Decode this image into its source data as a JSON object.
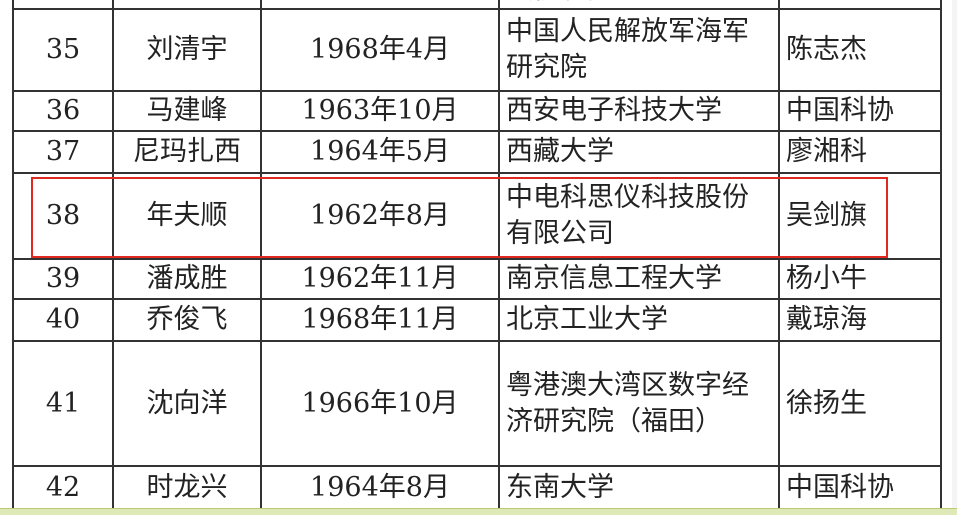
{
  "table": {
    "rows": [
      {
        "no": "",
        "name": "",
        "birth": "",
        "unit": "股份有限公司",
        "recommender": ""
      },
      {
        "no": "35",
        "name": "刘清宇",
        "birth": "1968年4月",
        "unit": "中国人民解放军海军研究院",
        "recommender": "陈志杰"
      },
      {
        "no": "36",
        "name": "马建峰",
        "birth": "1963年10月",
        "unit": "西安电子科技大学",
        "recommender": "中国科协"
      },
      {
        "no": "37",
        "name": "尼玛扎西",
        "birth": "1964年5月",
        "unit": "西藏大学",
        "recommender": "廖湘科"
      },
      {
        "no": "38",
        "name": "年夫顺",
        "birth": "1962年8月",
        "unit": "中电科思仪科技股份有限公司",
        "recommender": "吴剑旗"
      },
      {
        "no": "39",
        "name": "潘成胜",
        "birth": "1962年11月",
        "unit": "南京信息工程大学",
        "recommender": "杨小牛"
      },
      {
        "no": "40",
        "name": "乔俊飞",
        "birth": "1968年11月",
        "unit": "北京工业大学",
        "recommender": "戴琼海"
      },
      {
        "no": "41",
        "name": "沈向洋",
        "birth": "1966年10月",
        "unit": "粤港澳大湾区数字经济研究院（福田）",
        "recommender": "徐扬生"
      },
      {
        "no": "42",
        "name": "时龙兴",
        "birth": "1964年8月",
        "unit": "东南大学",
        "recommender": "中国科协"
      },
      {
        "no": "",
        "name": "",
        "birth": "",
        "unit": "",
        "recommender": ""
      }
    ],
    "highlight_color": "#e0281e"
  }
}
